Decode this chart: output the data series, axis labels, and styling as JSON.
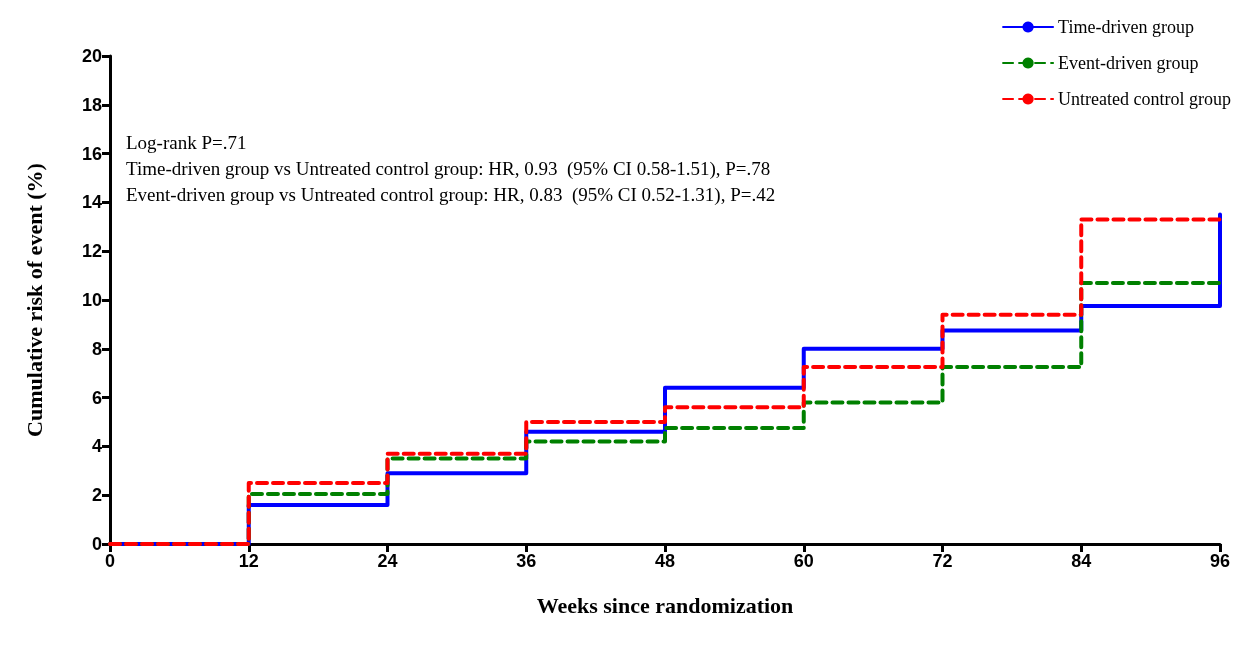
{
  "chart_data": {
    "type": "step",
    "xlabel": "Weeks since randomization",
    "ylabel": "Cumulative risk of event (%)",
    "x": [
      0,
      12,
      24,
      36,
      48,
      60,
      72,
      84,
      96
    ],
    "series": [
      {
        "name": "Time-driven group",
        "color": "#0000ff",
        "line_style": "solid",
        "values": [
          0,
          1.6,
          2.9,
          4.6,
          6.4,
          8.0,
          8.75,
          9.75,
          13.5
        ]
      },
      {
        "name": "Event-driven group",
        "color": "#008000",
        "line_style": "dashed",
        "values": [
          0,
          2.05,
          3.5,
          4.2,
          4.75,
          5.8,
          7.25,
          10.7,
          10.7
        ]
      },
      {
        "name": "Untreated control group",
        "color": "#ff0000",
        "line_style": "dashed",
        "values": [
          0,
          2.5,
          3.7,
          5.0,
          5.6,
          7.25,
          9.4,
          13.3,
          13.3
        ]
      }
    ],
    "xlim": [
      0,
      96
    ],
    "xticks": [
      0,
      12,
      24,
      36,
      48,
      60,
      72,
      84,
      96
    ],
    "ylim": [
      0,
      20
    ],
    "yticks": [
      0,
      2,
      4,
      6,
      8,
      10,
      12,
      14,
      16,
      18,
      20
    ],
    "grid": false,
    "legend": "top right",
    "marker": "none",
    "annotations": [
      "Log-rank P=.71",
      "Time-driven group vs Untreated control group: HR, 0.93  (95% CI 0.58-1.51), P=.78",
      "Event-driven group vs Untreated control group: HR, 0.83  (95% CI 0.52-1.31), P=.42"
    ]
  }
}
